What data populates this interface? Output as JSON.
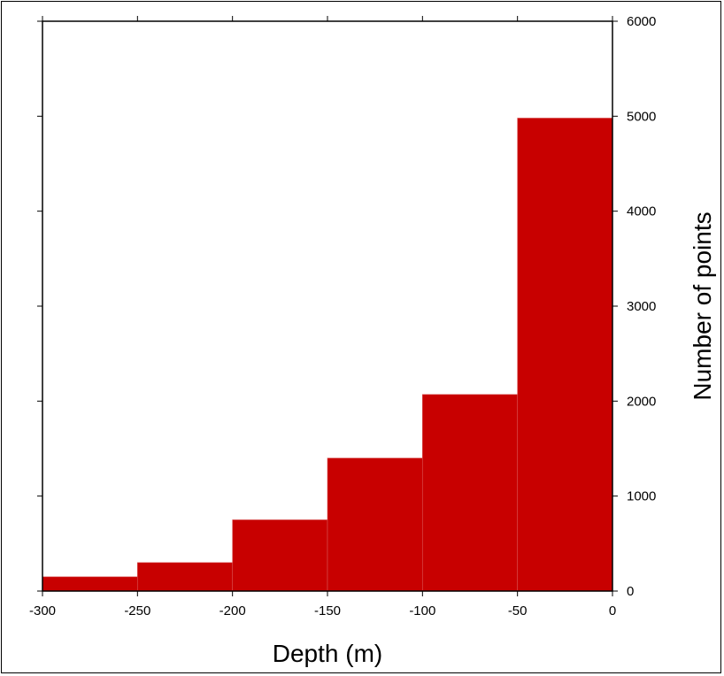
{
  "chart_data": {
    "type": "bar",
    "title": "",
    "xlabel": "Depth (m)",
    "ylabel": "Number of points",
    "x_bin_edges": [
      -300,
      -250,
      -200,
      -150,
      -100,
      -50,
      0
    ],
    "values": [
      150,
      300,
      750,
      1400,
      2070,
      4980
    ],
    "xlim": [
      -300,
      0
    ],
    "ylim": [
      0,
      6000
    ],
    "x_ticks": [
      -300,
      -250,
      -200,
      -150,
      -100,
      -50,
      0
    ],
    "y_ticks": [
      0,
      1000,
      2000,
      3000,
      4000,
      5000,
      6000
    ],
    "x_tick_labels": [
      "-300",
      "-250",
      "-200",
      "-150",
      "-100",
      "-50",
      "0"
    ],
    "y_tick_labels": [
      "0",
      "1000",
      "2000",
      "3000",
      "4000",
      "5000",
      "6000"
    ],
    "y_axis_side": "right",
    "grid": false,
    "legend": "none",
    "bar_color": "#c80000",
    "bar_edge_color": "#d85050"
  }
}
